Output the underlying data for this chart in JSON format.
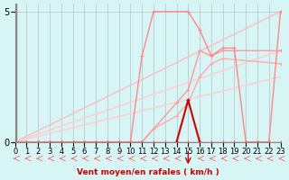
{
  "title": "",
  "xlabel": "Vent moyen/en rafales ( km/h )",
  "ylabel": "",
  "bg_color": "#d8f5f5",
  "grid_color": "#aaaaaa",
  "xlim": [
    0,
    23
  ],
  "ylim": [
    0,
    5.3
  ],
  "yticks": [
    0,
    5
  ],
  "xticks": [
    0,
    1,
    2,
    3,
    4,
    5,
    6,
    7,
    8,
    9,
    10,
    11,
    12,
    13,
    14,
    15,
    16,
    17,
    18,
    19,
    20,
    21,
    22,
    23
  ],
  "line1": {
    "x": [
      0,
      1,
      2,
      3,
      4,
      5,
      6,
      7,
      8,
      9,
      10,
      11,
      12,
      13,
      14,
      15,
      16,
      17,
      18,
      19,
      20,
      21,
      22,
      23
    ],
    "y": [
      0,
      0,
      0,
      0,
      0,
      0,
      0,
      0,
      0,
      0,
      0,
      0,
      0,
      0,
      0,
      0,
      0,
      0,
      0,
      0,
      0,
      0,
      0,
      0
    ],
    "color": "#ff4444",
    "lw": 1.0,
    "marker": "+"
  },
  "line2": {
    "x": [
      0,
      1,
      2,
      3,
      4,
      5,
      6,
      7,
      8,
      9,
      10,
      11,
      12,
      15,
      16,
      17,
      18,
      19,
      20,
      21,
      22,
      23
    ],
    "y": [
      0,
      0,
      0,
      0,
      0,
      0,
      0,
      0,
      0,
      0,
      0,
      3.3,
      5,
      5,
      4.3,
      3.3,
      3.6,
      3.6,
      0,
      0,
      0,
      5
    ],
    "color": "#ff8888",
    "lw": 1.0,
    "marker": "+"
  },
  "line3": {
    "x": [
      0,
      1,
      2,
      3,
      4,
      5,
      6,
      7,
      8,
      9,
      10,
      11,
      14,
      15,
      16,
      17,
      18,
      19,
      23
    ],
    "y": [
      0,
      0,
      0,
      0,
      0,
      0,
      0,
      0,
      0,
      0,
      0,
      0,
      1.5,
      2.0,
      3.5,
      3.3,
      3.5,
      3.5,
      3.5
    ],
    "color": "#ff9999",
    "lw": 1.0,
    "marker": "+"
  },
  "line4": {
    "x": [
      0,
      1,
      2,
      3,
      4,
      5,
      6,
      7,
      8,
      9,
      10,
      11,
      12,
      14,
      15,
      16,
      17,
      18,
      23
    ],
    "y": [
      0,
      0,
      0,
      0,
      0,
      0,
      0,
      0,
      0,
      0,
      0,
      0,
      0.5,
      1.0,
      1.5,
      2.5,
      3.0,
      3.2,
      3.0
    ],
    "color": "#ffaaaa",
    "lw": 1.0,
    "marker": "+"
  },
  "diag1": {
    "x": [
      0,
      23
    ],
    "y": [
      0,
      5
    ],
    "color": "#ffbbbb",
    "lw": 1.0
  },
  "diag2": {
    "x": [
      0,
      23
    ],
    "y": [
      0,
      3.5
    ],
    "color": "#ffcccc",
    "lw": 1.0
  },
  "diag3": {
    "x": [
      0,
      23
    ],
    "y": [
      0,
      2.5
    ],
    "color": "#ffcccc",
    "lw": 1.0
  },
  "red_spike": {
    "x": [
      14,
      15,
      16
    ],
    "y": [
      0,
      1.6,
      0
    ],
    "color": "#cc0000",
    "lw": 1.5,
    "marker": "+"
  }
}
